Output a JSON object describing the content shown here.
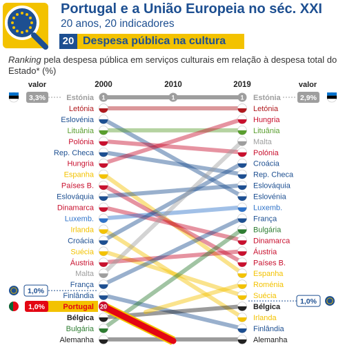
{
  "header": {
    "title": "Portugal e a União Europeia no séc. XXI",
    "subtitle": "20 anos, 20 indicadores",
    "section_number": "20",
    "section_title": "Despesa pública na cultura"
  },
  "description": {
    "italic_part": "Ranking",
    "text": " pela despesa pública em serviços culturais em relação à despesa total do Estado* (%)"
  },
  "colors": {
    "brand_blue": "#1d4f91",
    "brand_yellow": "#f3c200",
    "portugal_red": "#e30613",
    "grey_line": "#bdbdbd"
  },
  "chart_data": {
    "type": "slope",
    "years": [
      "2000",
      "2010",
      "2019"
    ],
    "value_label": "valor",
    "left_values": [
      {
        "country": "Estónia",
        "value": "3,3%"
      },
      {
        "country": "Finlândia",
        "value": "1,0%"
      },
      {
        "country": "Portugal",
        "value": "1,0%"
      }
    ],
    "right_values": [
      {
        "country": "Estónia",
        "value": "2,9%"
      },
      {
        "country": "Suécia",
        "value": "1,0%"
      }
    ],
    "ranking_2000": [
      "Estónia",
      "Letónia",
      "Eslovénia",
      "Lituânia",
      "Polónia",
      "Rep. Checa",
      "Hungria",
      "Espanha",
      "Países B.",
      "Eslováquia",
      "Dinamarca",
      "Luxemb.",
      "Irlanda",
      "Croácia",
      "Suécia",
      "Áustria",
      "Malta",
      "França",
      "Finlândia",
      "Portugal",
      "Bélgica",
      "Bulgária",
      "Alemanha"
    ],
    "ranking_2019": [
      "Estónia",
      "Letónia",
      "Hungria",
      "Lituânia",
      "Malta",
      "Polónia",
      "Croácia",
      "Rep. Checa",
      "Eslováquia",
      "Eslovénia",
      "Luxemb.",
      "França",
      "Bulgária",
      "Dinamarca",
      "Áustria",
      "Países B.",
      "Espanha",
      "Roménia",
      "Suécia",
      "Bélgica",
      "Irlanda",
      "Finlândia",
      "Alemanha"
    ],
    "series": [
      {
        "name": "Estónia",
        "ranks": [
          1,
          1,
          1
        ],
        "color": "#9e9e9e"
      },
      {
        "name": "Letónia",
        "ranks": [
          2,
          null,
          2
        ],
        "color": "#b0191e"
      },
      {
        "name": "Eslovénia",
        "ranks": [
          3,
          null,
          10
        ],
        "color": "#1d4f91"
      },
      {
        "name": "Lituânia",
        "ranks": [
          4,
          null,
          4
        ],
        "color": "#5a9e2f"
      },
      {
        "name": "Polónia",
        "ranks": [
          5,
          null,
          6
        ],
        "color": "#c8102e"
      },
      {
        "name": "Rep. Checa",
        "ranks": [
          6,
          null,
          8
        ],
        "color": "#1d4f91"
      },
      {
        "name": "Hungria",
        "ranks": [
          7,
          null,
          3
        ],
        "color": "#c8102e"
      },
      {
        "name": "Espanha",
        "ranks": [
          8,
          null,
          17
        ],
        "color": "#f3c200"
      },
      {
        "name": "Países B.",
        "ranks": [
          9,
          null,
          16
        ],
        "color": "#c8102e"
      },
      {
        "name": "Eslováquia",
        "ranks": [
          10,
          null,
          9
        ],
        "color": "#1d4f91"
      },
      {
        "name": "Dinamarca",
        "ranks": [
          11,
          null,
          14
        ],
        "color": "#c8102e"
      },
      {
        "name": "Luxemb.",
        "ranks": [
          12,
          null,
          11
        ],
        "color": "#2f73c9"
      },
      {
        "name": "Irlanda",
        "ranks": [
          13,
          null,
          21
        ],
        "color": "#f3c200"
      },
      {
        "name": "Croácia",
        "ranks": [
          14,
          null,
          7
        ],
        "color": "#1d4f91"
      },
      {
        "name": "Suécia",
        "ranks": [
          15,
          null,
          19
        ],
        "color": "#f3c200"
      },
      {
        "name": "Áustria",
        "ranks": [
          16,
          null,
          15
        ],
        "color": "#c8102e"
      },
      {
        "name": "Malta",
        "ranks": [
          17,
          null,
          5
        ],
        "color": "#9e9e9e"
      },
      {
        "name": "França",
        "ranks": [
          18,
          null,
          12
        ],
        "color": "#1d4f91"
      },
      {
        "name": "Finlândia",
        "ranks": [
          19,
          null,
          22
        ],
        "color": "#1d4f91"
      },
      {
        "name": "Portugal",
        "ranks": [
          20,
          null,
          null
        ],
        "color": "#e30613"
      },
      {
        "name": "Bélgica",
        "ranks": [
          21,
          null,
          20
        ],
        "color": "#222222"
      },
      {
        "name": "Bulgária",
        "ranks": [
          22,
          null,
          13
        ],
        "color": "#2e7d32"
      },
      {
        "name": "Alemanha",
        "ranks": [
          23,
          null,
          23
        ],
        "color": "#222222"
      },
      {
        "name": "Roménia",
        "ranks": [
          null,
          null,
          18
        ],
        "color": "#f3c200"
      }
    ],
    "visible_rank_badges": [
      "1",
      "1",
      "1",
      "20"
    ]
  }
}
